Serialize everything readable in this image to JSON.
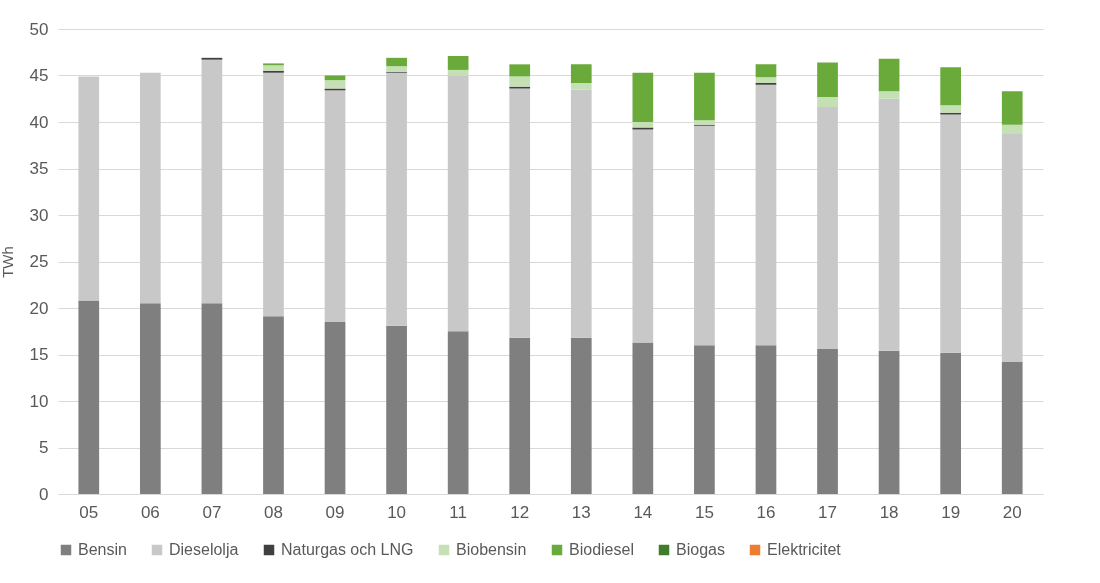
{
  "chart_data": {
    "type": "bar",
    "stacked": true,
    "ylabel": "TWh",
    "categories": [
      "05",
      "06",
      "07",
      "08",
      "09",
      "10",
      "11",
      "12",
      "13",
      "14",
      "15",
      "16",
      "17",
      "18",
      "19",
      "20"
    ],
    "ylim": [
      0,
      50
    ],
    "yticks": [
      0,
      5,
      10,
      15,
      20,
      25,
      30,
      35,
      40,
      45,
      50
    ],
    "grid": "y",
    "legend": "bottom",
    "series": [
      {
        "name": "Bensin",
        "color": "#7f7f7f",
        "values": [
          20.8,
          20.5,
          20.5,
          19.1,
          18.5,
          18.1,
          17.5,
          16.8,
          16.8,
          16.3,
          16.0,
          16.0,
          15.6,
          15.4,
          15.2,
          14.2
        ]
      },
      {
        "name": "Dieselolja",
        "color": "#c8c8c8",
        "values": [
          24.1,
          24.8,
          26.2,
          26.2,
          24.9,
          27.2,
          27.5,
          26.8,
          26.7,
          22.9,
          23.6,
          28.0,
          26.0,
          27.1,
          25.6,
          24.5
        ]
      },
      {
        "name": "Naturgas och LNG",
        "color": "#404040",
        "values": [
          0,
          0,
          0.2,
          0.2,
          0.2,
          0.1,
          0,
          0.2,
          0,
          0.2,
          0.1,
          0.2,
          0,
          0,
          0.2,
          0
        ]
      },
      {
        "name": "Biobensin",
        "color": "#c5e0b4",
        "values": [
          0,
          0,
          0,
          0.6,
          0.9,
          0.6,
          0.6,
          1.1,
          0.7,
          0.6,
          0.5,
          0.6,
          1.1,
          0.8,
          0.8,
          1.0
        ]
      },
      {
        "name": "Biodiesel",
        "color": "#6aaa3a",
        "values": [
          0,
          0,
          0,
          0.2,
          0.5,
          0.9,
          1.5,
          1.3,
          2.0,
          5.3,
          5.1,
          1.4,
          3.7,
          3.5,
          4.1,
          3.6
        ]
      },
      {
        "name": "Biogas",
        "color": "#3f7d2a",
        "values": [
          0,
          0,
          0,
          0,
          0,
          0,
          0,
          0,
          0,
          0,
          0,
          0,
          0,
          0,
          0,
          0
        ]
      },
      {
        "name": "Elektricitet",
        "color": "#ed7d31",
        "values": [
          0,
          0,
          0,
          0,
          0,
          0,
          0,
          0,
          0,
          0,
          0,
          0,
          0,
          0,
          0,
          0
        ]
      }
    ]
  }
}
